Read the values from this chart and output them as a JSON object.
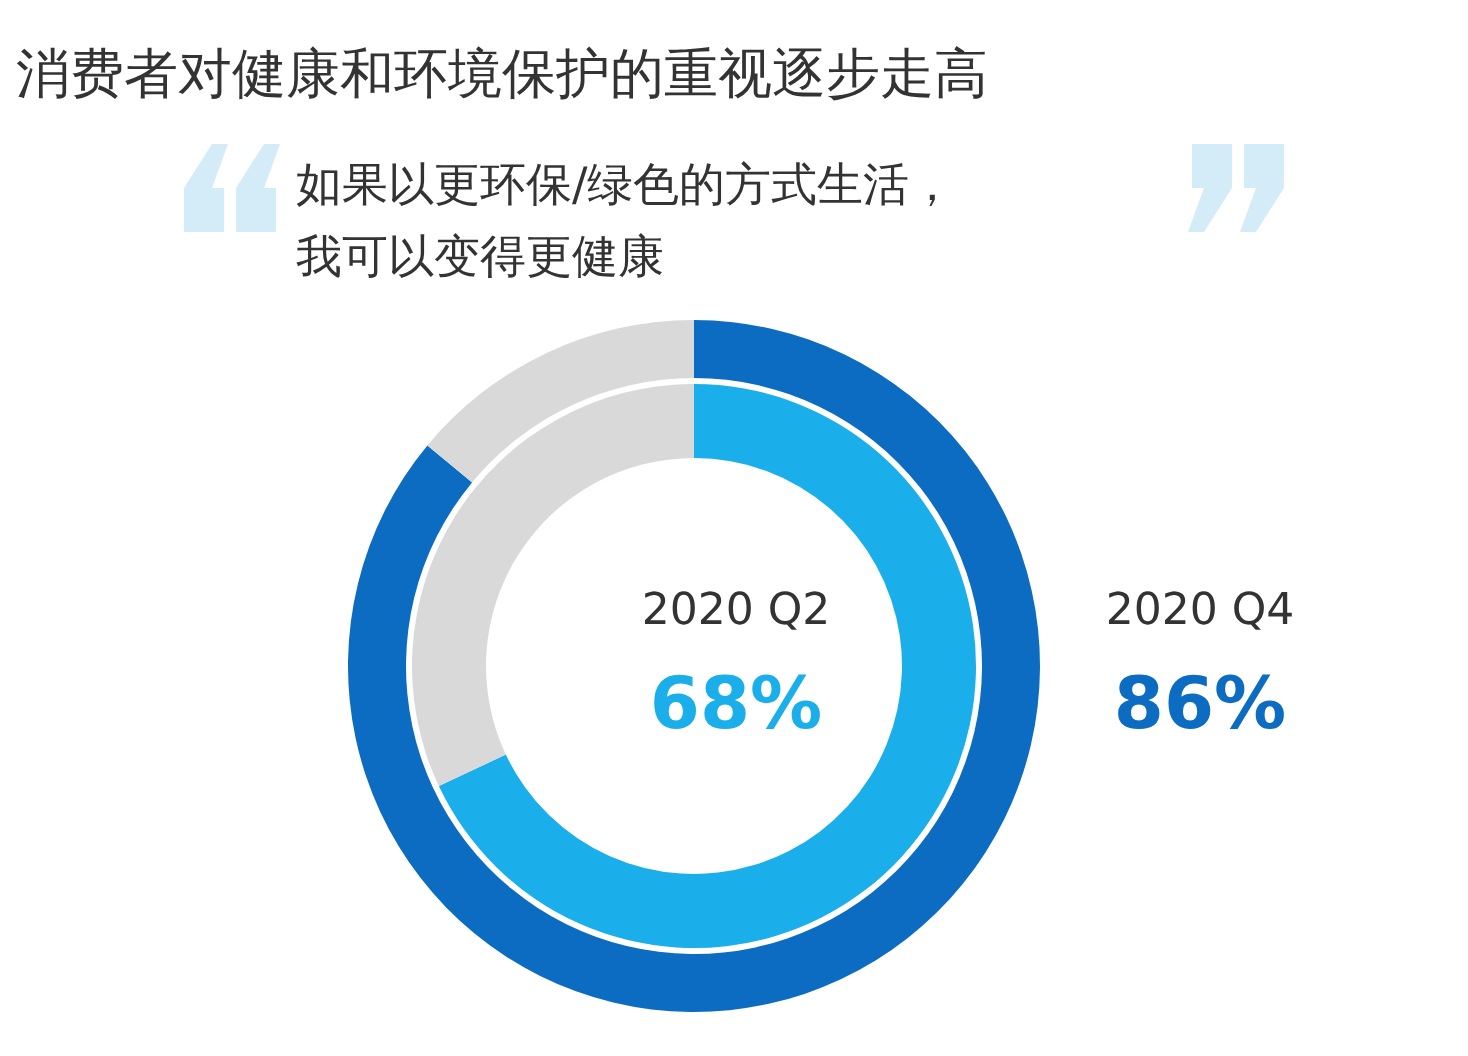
{
  "chart_data": {
    "type": "donut",
    "title": "消费者对健康和环境保护的重视逐步走高",
    "subtitle": "如果以更环保/绿色的方式生活，我可以变得更健康",
    "categories": [
      null,
      null
    ],
    "series": [
      {
        "name": "2020 Q4",
        "values": [
          86,
          14
        ],
        "colors": [
          "#0b6cc2",
          "#d9d9d9"
        ],
        "value_labels": [
          "86%",
          null
        ]
      },
      {
        "name": "2020 Q2",
        "values": [
          68,
          32
        ],
        "colors": [
          "#1aaeea",
          "#d9d9d9"
        ],
        "value_labels": [
          "68%",
          null
        ]
      }
    ]
  }
}
